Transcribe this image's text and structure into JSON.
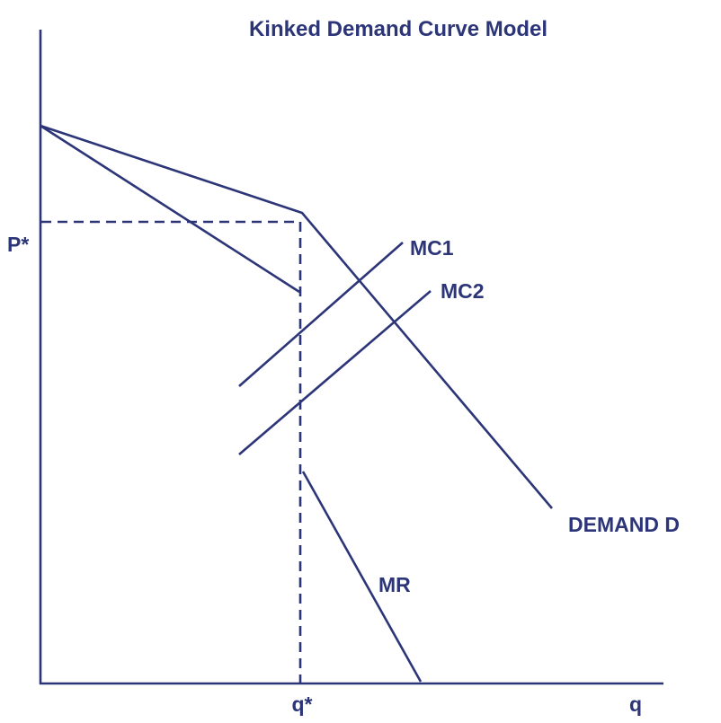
{
  "title": "Kinked Demand Curve Model",
  "x_axis_label": "q",
  "equilibrium_quantity_label": "q*",
  "equilibrium_price_label": "P*",
  "curves": {
    "demand": "DEMAND D",
    "mc1": "MC1",
    "mc2": "MC2",
    "mr": "MR"
  },
  "colors": {
    "ink": "#2c3577",
    "background": "#ffffff"
  }
}
